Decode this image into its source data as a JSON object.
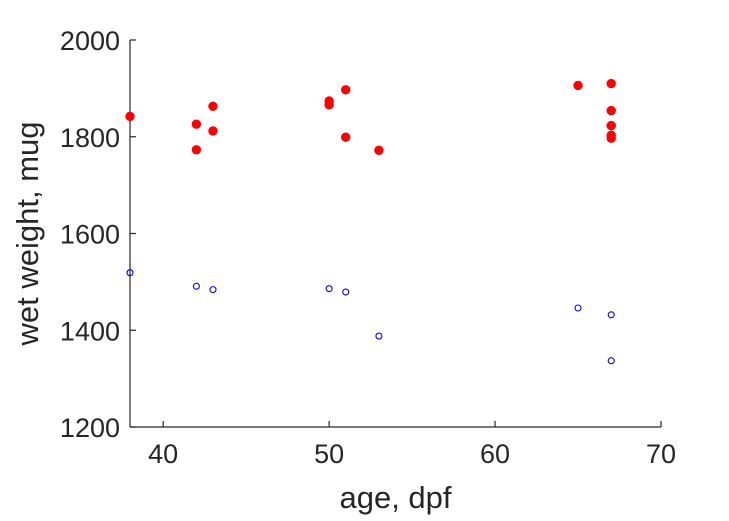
{
  "chart_data": {
    "type": "scatter",
    "title": "",
    "xlabel": "age, dpf",
    "ylabel": "wet weight, mug",
    "xlim": [
      38,
      70
    ],
    "ylim": [
      1200,
      2000
    ],
    "xticks": [
      40,
      50,
      60,
      70
    ],
    "yticks": [
      1200,
      1400,
      1600,
      1800,
      2000
    ],
    "grid": false,
    "legend": "none",
    "series": [
      {
        "marker": "filled-circle",
        "color": "#ff0000",
        "points": [
          {
            "x": 38,
            "y": 1842
          },
          {
            "x": 42,
            "y": 1826
          },
          {
            "x": 42,
            "y": 1773
          },
          {
            "x": 43,
            "y": 1863
          },
          {
            "x": 43,
            "y": 1812
          },
          {
            "x": 50,
            "y": 1874
          },
          {
            "x": 50,
            "y": 1866
          },
          {
            "x": 51,
            "y": 1897
          },
          {
            "x": 51,
            "y": 1799
          },
          {
            "x": 53,
            "y": 1772
          },
          {
            "x": 65,
            "y": 1906
          },
          {
            "x": 67,
            "y": 1910
          },
          {
            "x": 67,
            "y": 1854
          },
          {
            "x": 67,
            "y": 1823
          },
          {
            "x": 67,
            "y": 1803
          },
          {
            "x": 67,
            "y": 1797
          }
        ]
      },
      {
        "marker": "open-circle",
        "color": "#0000ff",
        "points": [
          {
            "x": 38,
            "y": 1519
          },
          {
            "x": 42,
            "y": 1491
          },
          {
            "x": 43,
            "y": 1484
          },
          {
            "x": 50,
            "y": 1486
          },
          {
            "x": 51,
            "y": 1479
          },
          {
            "x": 53,
            "y": 1388
          },
          {
            "x": 65,
            "y": 1446
          },
          {
            "x": 67,
            "y": 1432
          },
          {
            "x": 67,
            "y": 1337
          }
        ]
      }
    ]
  }
}
